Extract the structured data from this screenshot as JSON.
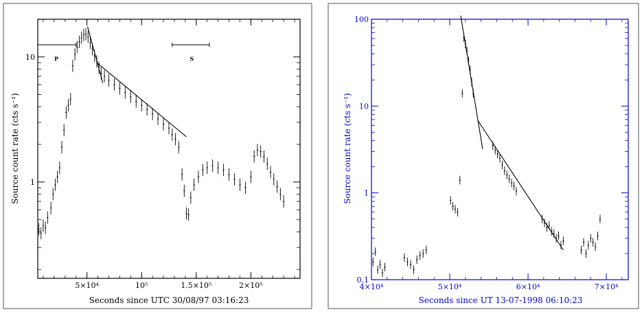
{
  "chart_data": [
    {
      "type": "scatter",
      "title": "",
      "xlabel": "Seconds since UTC 30/08/97 03:16:23",
      "ylabel": "Source count rate (cts s⁻¹)",
      "x_scale": "linear",
      "y_scale": "log",
      "xlim": [
        5000,
        245000
      ],
      "ylim": [
        0.17,
        20
      ],
      "x_ticks": [
        {
          "value": 50000,
          "label": "5×10⁴"
        },
        {
          "value": 100000,
          "label": "10⁵"
        },
        {
          "value": 150000,
          "label": "1.5×10⁵"
        },
        {
          "value": 200000,
          "label": "2×10⁵"
        }
      ],
      "y_ticks": [
        {
          "value": 1,
          "label": "1"
        },
        {
          "value": 10,
          "label": "10"
        }
      ],
      "grid": false,
      "color": "#000000",
      "annotations": [
        {
          "text": "P",
          "x": 22000,
          "y": 9.3
        },
        {
          "text": "S",
          "x": 146000,
          "y": 9.3
        }
      ],
      "intervals": [
        {
          "x": [
            5000,
            40000
          ],
          "y": 12.5
        },
        {
          "x": [
            128000,
            162000
          ],
          "y": 12.5
        }
      ],
      "fit_lines": [
        {
          "x": [
            50500,
            64500
          ],
          "y": [
            17.5,
            6.2
          ]
        },
        {
          "x": [
            59000,
            141000
          ],
          "y": [
            9,
            2.3
          ]
        }
      ],
      "series": [
        {
          "x": [
            6000,
            8000,
            10000,
            12000,
            14000,
            17000,
            19000,
            21000,
            23000,
            25000,
            27000,
            29000,
            31000,
            33000,
            35000,
            37000,
            39000,
            41000,
            43000,
            45000,
            47000,
            49000,
            51000,
            53000,
            55000,
            57000,
            59000,
            61000,
            63000,
            66000,
            70000,
            75000,
            80000,
            85000,
            90000,
            95000,
            100000,
            105000,
            110000,
            115000,
            120000,
            125000,
            128000,
            131000,
            134000,
            137000,
            139000,
            141000,
            143000,
            145000,
            148000,
            152000,
            156000,
            160000,
            165000,
            170000,
            175000,
            180000,
            185000,
            190000,
            195000,
            200000,
            203000,
            206000,
            209000,
            212000,
            215000,
            218000,
            221000,
            224000,
            227000,
            230000
          ],
          "y": [
            0.42,
            0.39,
            0.45,
            0.43,
            0.52,
            0.62,
            0.8,
            0.95,
            1.1,
            1.3,
            1.9,
            2.6,
            3.6,
            4.1,
            4.6,
            8.5,
            10.5,
            12,
            13.2,
            14.2,
            15,
            15.2,
            14.5,
            13,
            11.5,
            10.2,
            9.2,
            8.2,
            7.4,
            7,
            6.5,
            6,
            5.6,
            5.2,
            4.8,
            4.4,
            4.1,
            3.8,
            3.5,
            3.2,
            2.9,
            2.7,
            2.4,
            2.2,
            1.9,
            1.15,
            0.85,
            0.56,
            0.55,
            0.75,
            0.95,
            1.1,
            1.25,
            1.3,
            1.35,
            1.3,
            1.25,
            1.15,
            1.05,
            0.95,
            0.9,
            1.1,
            1.6,
            1.8,
            1.75,
            1.6,
            1.4,
            1.2,
            1.05,
            0.92,
            0.8,
            0.7
          ]
        }
      ]
    },
    {
      "type": "scatter",
      "title": "",
      "xlabel": "Seconds since UT 13-07-1998 06:10:23",
      "ylabel": "Source count rate (cts s⁻¹)",
      "x_scale": "linear",
      "y_scale": "log",
      "xlim": [
        40000,
        72800
      ],
      "ylim": [
        0.1,
        100
      ],
      "x_ticks": [
        {
          "value": 40000,
          "label": "4×10⁴"
        },
        {
          "value": 50000,
          "label": "5×10⁴"
        },
        {
          "value": 60000,
          "label": "6×10⁴"
        },
        {
          "value": 70000,
          "label": "7×10⁴"
        }
      ],
      "y_ticks": [
        {
          "value": 0.1,
          "label": "0.1"
        },
        {
          "value": 1,
          "label": "1"
        },
        {
          "value": 10,
          "label": "10"
        },
        {
          "value": 100,
          "label": "100"
        }
      ],
      "grid": false,
      "color": "#0000cc",
      "annotations": [],
      "intervals": [],
      "fit_lines": [
        {
          "x": [
            51400,
            54200
          ],
          "y": [
            110,
            3.2
          ]
        },
        {
          "x": [
            53600,
            64500
          ],
          "y": [
            6.8,
            0.22
          ]
        }
      ],
      "series": [
        {
          "x": [
            40200,
            40500,
            40800,
            41100,
            41400,
            41700,
            44200,
            44600,
            45000,
            45400,
            45800,
            46200,
            46600,
            47000,
            50100,
            50400,
            50700,
            51000,
            51300,
            51600,
            51800,
            52000,
            52200,
            52400,
            52600,
            52800,
            53000,
            55500,
            55800,
            56100,
            56400,
            56700,
            57000,
            57300,
            57600,
            57900,
            58200,
            58500,
            61800,
            62100,
            62400,
            62700,
            63000,
            63300,
            63600,
            63900,
            64200,
            64500,
            66800,
            67100,
            67400,
            67700,
            68000,
            68300,
            68600,
            68900,
            69200
          ],
          "y": [
            0.16,
            0.21,
            0.13,
            0.15,
            0.12,
            0.14,
            0.18,
            0.16,
            0.15,
            0.13,
            0.17,
            0.19,
            0.2,
            0.22,
            0.82,
            0.7,
            0.65,
            0.6,
            1.4,
            14,
            62,
            52,
            43,
            33,
            26,
            19,
            14,
            3.5,
            3.1,
            2.8,
            2.5,
            2.1,
            1.8,
            1.6,
            1.45,
            1.3,
            1.2,
            1.05,
            0.5,
            0.45,
            0.4,
            0.42,
            0.36,
            0.34,
            0.3,
            0.32,
            0.25,
            0.28,
            0.22,
            0.27,
            0.2,
            0.25,
            0.3,
            0.27,
            0.24,
            0.32,
            0.5
          ]
        }
      ]
    }
  ]
}
